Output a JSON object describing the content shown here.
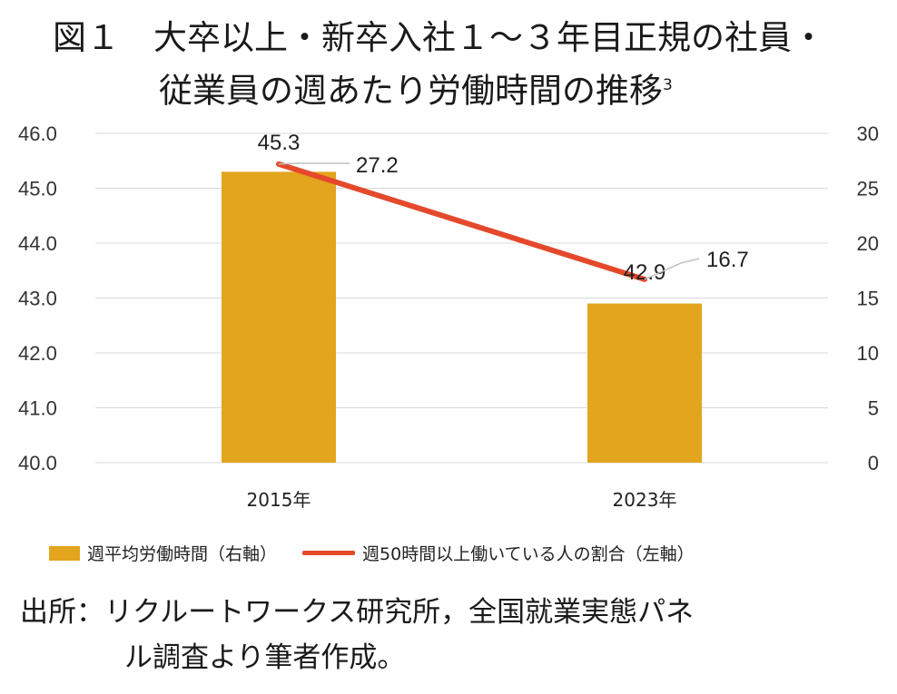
{
  "title": {
    "line1": "図１　大卒以上・新卒入社１～３年目正規の社員・",
    "line2": "従業員の週あたり労働時間の推移",
    "footnote_mark": "3"
  },
  "chart_data": {
    "type": "bar+line",
    "categories": [
      "2015年",
      "2023年"
    ],
    "series": [
      {
        "name": "週平均労働時間（右軸）",
        "type": "bar",
        "color": "#E3A41E",
        "values": [
          45.3,
          42.9
        ],
        "labels": [
          "45.3",
          "42.9"
        ]
      },
      {
        "name": "週50時間以上働いている人の割合（左軸）",
        "type": "line",
        "color": "#E4492B",
        "values": [
          27.2,
          16.7
        ],
        "labels": [
          "27.2",
          "16.7"
        ]
      }
    ],
    "left_axis": {
      "ticks": [
        "46.0",
        "45.0",
        "44.0",
        "43.0",
        "42.0",
        "41.0",
        "40.0"
      ],
      "range": [
        40,
        46
      ]
    },
    "right_axis": {
      "ticks": [
        "30",
        "25",
        "20",
        "15",
        "10",
        "5",
        "0"
      ],
      "range": [
        0,
        30
      ]
    },
    "grid": true,
    "legend_position": "bottom"
  },
  "legend": {
    "bar_label": "週平均労働時間（右軸）",
    "line_label": "週50時間以上働いている人の割合（左軸）"
  },
  "source": {
    "line1": "出所：リクルートワークス研究所，全国就業実態パネ",
    "line2": "ル調査より筆者作成。"
  }
}
